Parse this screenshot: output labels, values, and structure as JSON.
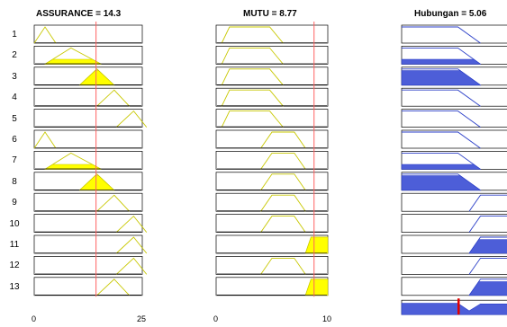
{
  "columns": {
    "assurance": {
      "title": "ASSURANCE = 14.3",
      "x_min": 0,
      "x_max": 25,
      "value": 14.3,
      "ticks": [
        {
          "value": 0,
          "label": "0"
        },
        {
          "value": 25,
          "label": "25"
        }
      ]
    },
    "mutu": {
      "title": "MUTU = 8.77",
      "x_min": 0,
      "x_max": 10,
      "value": 8.77,
      "ticks": [
        {
          "value": 0,
          "label": "0"
        },
        {
          "value": 10,
          "label": "10"
        }
      ]
    },
    "hubungan": {
      "title": "Hubungan = 5.06",
      "x_min": 0,
      "x_max": 10,
      "value": 5.06
    }
  },
  "rules": [
    {
      "label": "1",
      "a": {
        "pts": [
          [
            0,
            0
          ],
          [
            2.5,
            1
          ],
          [
            5,
            0
          ]
        ],
        "fill": 0
      },
      "m": {
        "pts": [
          [
            0.5,
            0
          ],
          [
            1.2,
            1
          ],
          [
            4.8,
            1
          ],
          [
            6,
            0
          ]
        ],
        "fill": 0
      },
      "h": {
        "pts": [
          [
            0,
            1
          ],
          [
            5,
            1
          ],
          [
            7,
            0
          ]
        ],
        "fill": 0
      }
    },
    {
      "label": "2",
      "a": {
        "pts": [
          [
            2.5,
            0
          ],
          [
            8.5,
            1
          ],
          [
            15.5,
            0
          ]
        ],
        "fill": 0.3
      },
      "m": {
        "pts": [
          [
            0.5,
            0
          ],
          [
            1.2,
            1
          ],
          [
            4.8,
            1
          ],
          [
            6,
            0
          ]
        ],
        "fill": 0
      },
      "h": {
        "pts": [
          [
            0,
            1
          ],
          [
            5,
            1
          ],
          [
            7,
            0
          ]
        ],
        "fill": 0.3
      }
    },
    {
      "label": "3",
      "a": {
        "pts": [
          [
            10.5,
            0
          ],
          [
            14.5,
            1
          ],
          [
            18.5,
            0
          ]
        ],
        "fill": 0.9
      },
      "m": {
        "pts": [
          [
            0.5,
            0
          ],
          [
            1.2,
            1
          ],
          [
            4.8,
            1
          ],
          [
            6,
            0
          ]
        ],
        "fill": 0
      },
      "h": {
        "pts": [
          [
            0,
            1
          ],
          [
            5,
            1
          ],
          [
            7,
            0
          ]
        ],
        "fill": 0.9
      }
    },
    {
      "label": "4",
      "a": {
        "pts": [
          [
            14.5,
            0
          ],
          [
            18.5,
            1
          ],
          [
            22,
            0
          ]
        ],
        "fill": 0
      },
      "m": {
        "pts": [
          [
            0.5,
            0
          ],
          [
            1.2,
            1
          ],
          [
            4.8,
            1
          ],
          [
            6,
            0
          ]
        ],
        "fill": 0
      },
      "h": {
        "pts": [
          [
            0,
            1
          ],
          [
            5,
            1
          ],
          [
            7,
            0
          ]
        ],
        "fill": 0
      }
    },
    {
      "label": "5",
      "a": {
        "pts": [
          [
            19,
            0
          ],
          [
            23,
            1
          ],
          [
            26,
            0
          ]
        ],
        "fill": 0
      },
      "m": {
        "pts": [
          [
            0.5,
            0
          ],
          [
            1.2,
            1
          ],
          [
            4.8,
            1
          ],
          [
            6,
            0
          ]
        ],
        "fill": 0
      },
      "h": {
        "pts": [
          [
            0,
            1
          ],
          [
            5,
            1
          ],
          [
            7,
            0
          ]
        ],
        "fill": 0
      }
    },
    {
      "label": "6",
      "a": {
        "pts": [
          [
            0,
            0
          ],
          [
            2.5,
            1
          ],
          [
            5,
            0
          ]
        ],
        "fill": 0
      },
      "m": {
        "pts": [
          [
            4,
            0
          ],
          [
            5,
            1
          ],
          [
            7,
            1
          ],
          [
            8,
            0
          ]
        ],
        "fill": 0
      },
      "h": {
        "pts": [
          [
            0,
            1
          ],
          [
            5,
            1
          ],
          [
            7,
            0
          ]
        ],
        "fill": 0
      }
    },
    {
      "label": "7",
      "a": {
        "pts": [
          [
            2.5,
            0
          ],
          [
            8.5,
            1
          ],
          [
            15.5,
            0
          ]
        ],
        "fill": 0.3
      },
      "m": {
        "pts": [
          [
            4,
            0
          ],
          [
            5,
            1
          ],
          [
            7,
            1
          ],
          [
            8,
            0
          ]
        ],
        "fill": 0
      },
      "h": {
        "pts": [
          [
            0,
            1
          ],
          [
            5,
            1
          ],
          [
            7,
            0
          ]
        ],
        "fill": 0.3
      }
    },
    {
      "label": "8",
      "a": {
        "pts": [
          [
            10.5,
            0
          ],
          [
            14.5,
            1
          ],
          [
            18.5,
            0
          ]
        ],
        "fill": 0.9
      },
      "m": {
        "pts": [
          [
            4,
            0
          ],
          [
            5,
            1
          ],
          [
            7,
            1
          ],
          [
            8,
            0
          ]
        ],
        "fill": 0
      },
      "h": {
        "pts": [
          [
            0,
            1
          ],
          [
            5,
            1
          ],
          [
            7,
            0
          ]
        ],
        "fill": 0.9
      }
    },
    {
      "label": "9",
      "a": {
        "pts": [
          [
            14.5,
            0
          ],
          [
            18.5,
            1
          ],
          [
            22,
            0
          ]
        ],
        "fill": 0
      },
      "m": {
        "pts": [
          [
            4,
            0
          ],
          [
            5,
            1
          ],
          [
            7,
            1
          ],
          [
            8,
            0
          ]
        ],
        "fill": 0
      },
      "h": {
        "pts": [
          [
            6,
            0
          ],
          [
            7,
            1
          ],
          [
            10,
            1
          ]
        ],
        "fill": 0
      }
    },
    {
      "label": "10",
      "a": {
        "pts": [
          [
            19,
            0
          ],
          [
            23,
            1
          ],
          [
            26,
            0
          ]
        ],
        "fill": 0
      },
      "m": {
        "pts": [
          [
            4,
            0
          ],
          [
            5,
            1
          ],
          [
            7,
            1
          ],
          [
            8,
            0
          ]
        ],
        "fill": 0
      },
      "h": {
        "pts": [
          [
            6,
            0
          ],
          [
            7,
            1
          ],
          [
            10,
            1
          ]
        ],
        "fill": 0
      }
    },
    {
      "label": "11",
      "a": {
        "pts": [
          [
            19,
            0
          ],
          [
            23,
            1
          ],
          [
            26,
            0
          ]
        ],
        "fill": 0
      },
      "m": {
        "pts": [
          [
            8,
            0
          ],
          [
            8.5,
            1
          ],
          [
            10,
            1
          ]
        ],
        "fill": 1
      },
      "h": {
        "pts": [
          [
            6,
            0
          ],
          [
            7,
            1
          ],
          [
            10,
            1
          ]
        ],
        "fill": 0.85
      }
    },
    {
      "label": "12",
      "a": {
        "pts": [
          [
            19,
            0
          ],
          [
            23,
            1
          ],
          [
            26,
            0
          ]
        ],
        "fill": 0
      },
      "m": {
        "pts": [
          [
            4,
            0
          ],
          [
            5,
            1
          ],
          [
            7,
            1
          ],
          [
            8,
            0
          ]
        ],
        "fill": 0
      },
      "h": {
        "pts": [
          [
            6,
            0
          ],
          [
            7,
            1
          ],
          [
            10,
            1
          ]
        ],
        "fill": 0
      }
    },
    {
      "label": "13",
      "a": {
        "pts": [
          [
            14.5,
            0
          ],
          [
            18.5,
            1
          ],
          [
            22,
            0
          ]
        ],
        "fill": 0
      },
      "m": {
        "pts": [
          [
            8,
            0
          ],
          [
            8.5,
            1
          ],
          [
            10,
            1
          ]
        ],
        "fill": 1
      },
      "h": {
        "pts": [
          [
            6,
            0
          ],
          [
            7,
            1
          ],
          [
            10,
            1
          ]
        ],
        "fill": 0.85
      }
    }
  ],
  "colors": {
    "input_fill": "#ffff00",
    "input_line": "#c8c800",
    "output_fill": "#4d5ed8",
    "output_line": "#2b3fc8",
    "marker": "#ff6060",
    "frame": "#000000"
  }
}
